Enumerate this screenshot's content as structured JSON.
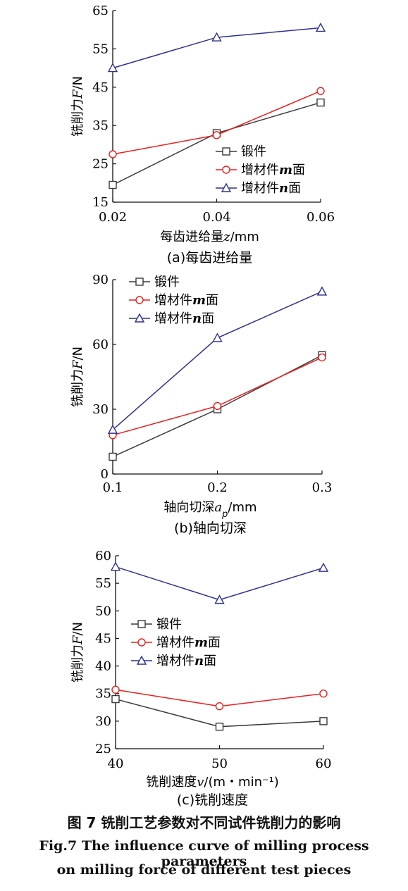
{
  "figure": {
    "caption_cn": "图 7   铣削工艺参数对不同试件铣削力的影响",
    "caption_en_line1": "Fig.7   The influence curve of milling process parameters",
    "caption_en_line2": "on milling force of different test pieces"
  },
  "colors": {
    "forging": "#3a3a3a",
    "am_m": "#e8211d",
    "am_n": "#2e3192"
  },
  "chart_data": [
    {
      "type": "line",
      "subtitle": "(a)每齿进给量",
      "xlabel": "每齿进给量z/mm",
      "ylabel": "铣削力F/N",
      "x": [
        0.02,
        0.04,
        0.06
      ],
      "x_tick_labels": [
        "0.02",
        "0.04",
        "0.06"
      ],
      "ylim": [
        15,
        65
      ],
      "y_ticks": [
        15,
        25,
        35,
        45,
        55,
        65
      ],
      "legend_position": "lower-right",
      "series": [
        {
          "name": "锻件",
          "marker": "square",
          "values": [
            19.5,
            33.0,
            41.0
          ]
        },
        {
          "name": "增材件m面",
          "marker": "circle",
          "values": [
            27.5,
            32.5,
            44.0
          ]
        },
        {
          "name": "增材件n面",
          "marker": "triangle",
          "values": [
            50.0,
            58.0,
            60.5
          ]
        }
      ]
    },
    {
      "type": "line",
      "subtitle": "(b)轴向切深",
      "xlabel": "轴向切深a_p/mm",
      "ylabel": "铣削力F/N",
      "x": [
        0.1,
        0.2,
        0.3
      ],
      "x_tick_labels": [
        "0.1",
        "0.2",
        "0.3"
      ],
      "ylim": [
        0,
        90
      ],
      "y_ticks": [
        0,
        30,
        60,
        90
      ],
      "legend_position": "top-left",
      "series": [
        {
          "name": "锻件",
          "marker": "square",
          "values": [
            8,
            30,
            55
          ]
        },
        {
          "name": "增材件m面",
          "marker": "circle",
          "values": [
            18,
            31.5,
            54
          ]
        },
        {
          "name": "增材件n面",
          "marker": "triangle",
          "values": [
            20.5,
            63,
            84.5
          ]
        }
      ]
    },
    {
      "type": "line",
      "subtitle": "(c)铣削速度",
      "xlabel": "铣削速度v/(m・min⁻¹)",
      "ylabel": "铣削力F/N",
      "x": [
        40,
        50,
        60
      ],
      "x_tick_labels": [
        "40",
        "50",
        "60"
      ],
      "ylim": [
        25,
        60
      ],
      "y_ticks": [
        25,
        30,
        35,
        40,
        45,
        50,
        55,
        60
      ],
      "legend_position": "middle-left",
      "series": [
        {
          "name": "锻件",
          "marker": "square",
          "values": [
            34,
            29,
            30
          ]
        },
        {
          "name": "增材件m面",
          "marker": "circle",
          "values": [
            35.7,
            32.7,
            35
          ]
        },
        {
          "name": "增材件n面",
          "marker": "triangle",
          "values": [
            58,
            52,
            57.8
          ]
        }
      ]
    }
  ]
}
